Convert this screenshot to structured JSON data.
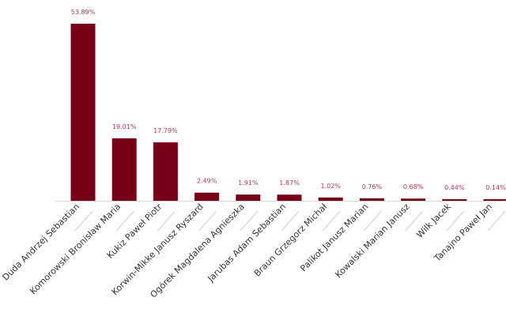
{
  "chart_data": {
    "type": "bar",
    "categories": [
      "Duda Andrzej Sebastian",
      "Komorowski Bronisław Maria",
      "Kukiz Paweł Piotr",
      "Korwin-Mikke Janusz Ryszard",
      "Ogórek Magdalena Agnieszka",
      "Jarubas Adam Sebastian",
      "Braun Grzegorz Michał",
      "Palikot Janusz Marian",
      "Kowalski Marian Janusz",
      "Wilk Jacek",
      "Tanajno Paweł Jan"
    ],
    "values": [
      53.89,
      19.01,
      17.79,
      2.49,
      1.91,
      1.87,
      1.02,
      0.76,
      0.68,
      0.44,
      0.14
    ],
    "value_labels": [
      "53.89%",
      "19.01%",
      "17.79%",
      "2.49%",
      "1.91%",
      "1.87%",
      "1.02%",
      "0.76%",
      "0.68%",
      "0.44%",
      "0.14%"
    ],
    "ylim": [
      0,
      53.89
    ],
    "grid": false,
    "colors": {
      "bar": "#760015",
      "value_label": "#b33a55",
      "axis": "#d8d8d8"
    }
  }
}
